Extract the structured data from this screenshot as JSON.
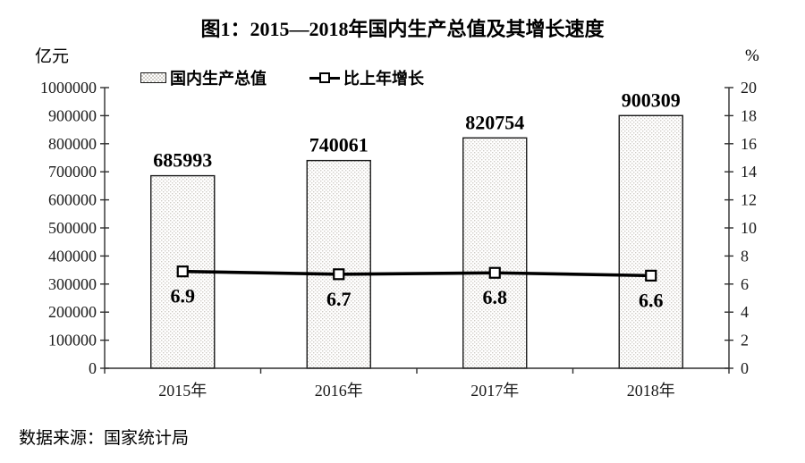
{
  "title": "图1：2015—2018年国内生产总值及其增长速度",
  "source_note": "数据来源：国家统计局",
  "legend": {
    "items": [
      {
        "label": "国内生产总值",
        "swatch": "dotted-bar-swatch"
      },
      {
        "label": "比上年增长",
        "swatch": "line-square-marker"
      }
    ]
  },
  "colors": {
    "text": "#000000",
    "axis": "#2e2e2e",
    "bar_border": "#1a1a1a",
    "bar_fill": "#ffffff",
    "bar_pattern_dot": "#cfccc6",
    "line": "#000000",
    "marker_fill": "#ffffff"
  },
  "chart_data": {
    "type": "bar+line",
    "title": "图1：2015—2018年国内生产总值及其增长速度",
    "categories": [
      "2015年",
      "2016年",
      "2017年",
      "2018年"
    ],
    "series": [
      {
        "name": "国内生产总值",
        "type": "bar",
        "axis": "left",
        "unit": "亿元",
        "values": [
          685993,
          740061,
          820754,
          900309
        ],
        "value_labels": [
          "685993",
          "740061",
          "820754",
          "900309"
        ]
      },
      {
        "name": "比上年增长",
        "type": "line",
        "axis": "right",
        "unit": "%",
        "values": [
          6.9,
          6.7,
          6.8,
          6.6
        ],
        "value_labels": [
          "6.9",
          "6.7",
          "6.8",
          "6.6"
        ]
      }
    ],
    "y_axis_left": {
      "unit": "亿元",
      "min": 0,
      "max": 1000000,
      "step": 100000,
      "tick_labels": [
        "0",
        "100000",
        "200000",
        "300000",
        "400000",
        "500000",
        "600000",
        "700000",
        "800000",
        "900000",
        "1000000"
      ]
    },
    "y_axis_right": {
      "unit": "%",
      "min": 0,
      "max": 20,
      "step": 2,
      "tick_labels": [
        "0",
        "2",
        "4",
        "6",
        "8",
        "10",
        "12",
        "14",
        "16",
        "18",
        "20"
      ]
    },
    "grid": false,
    "legend_position": "top"
  }
}
